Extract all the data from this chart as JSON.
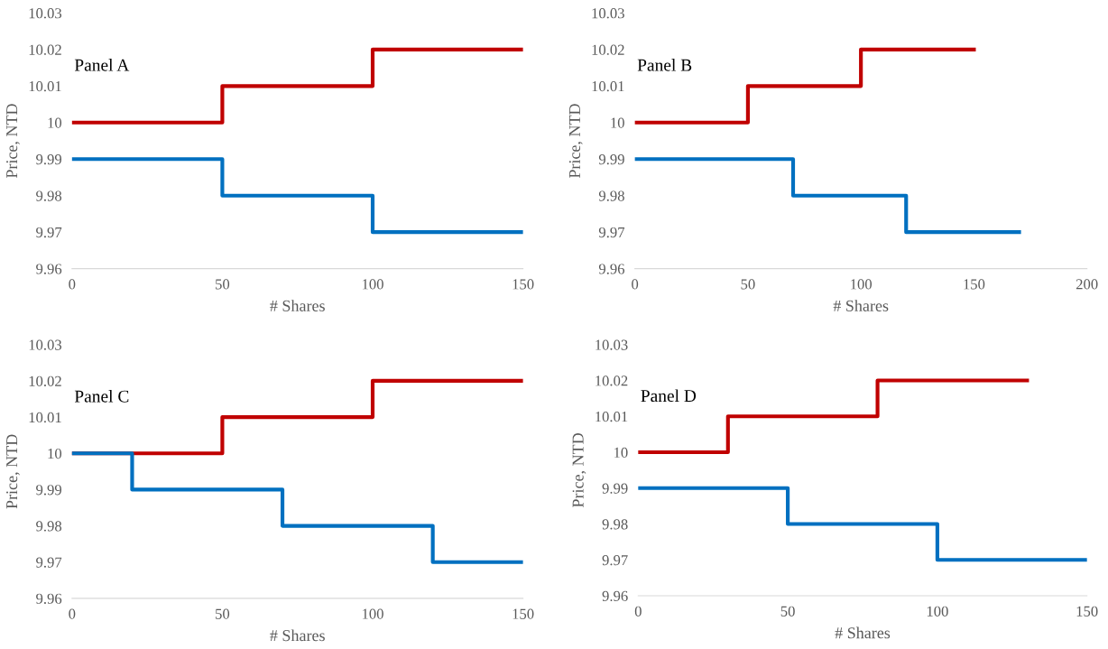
{
  "chart_data": [
    {
      "type": "step",
      "xlabel": "# Shares",
      "ylabel": "Price, NTD",
      "annotations": [
        "Panel A"
      ],
      "xlim": [
        0,
        150
      ],
      "xticks": [
        0,
        50,
        100,
        150
      ],
      "ylim": [
        9.96,
        10.03
      ],
      "yticks": [
        9.96,
        9.97,
        9.98,
        9.99,
        10,
        10.01,
        10.02,
        10.03
      ],
      "grid": false,
      "legend": false,
      "series": [
        {
          "color": "#c00000",
          "x": [
            0,
            50,
            100,
            150
          ],
          "values": [
            10,
            10.01,
            10.02,
            10.02
          ]
        },
        {
          "color": "#0070c0",
          "x": [
            0,
            50,
            100,
            150
          ],
          "values": [
            9.99,
            9.98,
            9.97,
            9.97
          ]
        }
      ]
    },
    {
      "type": "step",
      "xlabel": "# Shares",
      "ylabel": "Price, NTD",
      "annotations": [
        "Panel B"
      ],
      "xlim": [
        0,
        200
      ],
      "xticks": [
        0,
        50,
        100,
        150,
        200
      ],
      "ylim": [
        9.96,
        10.03
      ],
      "yticks": [
        9.96,
        9.97,
        9.98,
        9.99,
        10,
        10.01,
        10.02,
        10.03
      ],
      "grid": false,
      "legend": false,
      "series": [
        {
          "color": "#c00000",
          "x": [
            0,
            50,
            100,
            150
          ],
          "values": [
            10,
            10.01,
            10.02,
            10.02
          ]
        },
        {
          "color": "#0070c0",
          "x": [
            0,
            70,
            120,
            170
          ],
          "values": [
            9.99,
            9.98,
            9.97,
            9.97
          ]
        }
      ]
    },
    {
      "type": "step",
      "xlabel": "# Shares",
      "ylabel": "Price, NTD",
      "annotations": [
        "Panel C"
      ],
      "xlim": [
        0,
        150
      ],
      "xticks": [
        0,
        50,
        100,
        150
      ],
      "ylim": [
        9.96,
        10.03
      ],
      "yticks": [
        9.96,
        9.97,
        9.98,
        9.99,
        10,
        10.01,
        10.02,
        10.03
      ],
      "grid": false,
      "legend": false,
      "series": [
        {
          "color": "#c00000",
          "x": [
            0,
            50,
            100,
            150
          ],
          "values": [
            10,
            10.01,
            10.02,
            10.02
          ]
        },
        {
          "color": "#0070c0",
          "x": [
            0,
            20,
            70,
            120,
            150
          ],
          "values": [
            10,
            9.99,
            9.98,
            9.97,
            9.97
          ]
        }
      ]
    },
    {
      "type": "step",
      "xlabel": "# Shares",
      "ylabel": "Price, NTD",
      "annotations": [
        "Panel D"
      ],
      "xlim": [
        0,
        150
      ],
      "xticks": [
        0,
        50,
        100,
        150
      ],
      "ylim": [
        9.96,
        10.03
      ],
      "yticks": [
        9.96,
        9.97,
        9.98,
        9.99,
        10,
        10.01,
        10.02,
        10.03
      ],
      "grid": false,
      "legend": false,
      "series": [
        {
          "color": "#c00000",
          "x": [
            0,
            30,
            80,
            130
          ],
          "values": [
            10,
            10.01,
            10.02,
            10.02
          ]
        },
        {
          "color": "#0070c0",
          "x": [
            0,
            50,
            100,
            150
          ],
          "values": [
            9.99,
            9.98,
            9.97,
            9.97
          ]
        }
      ]
    }
  ]
}
